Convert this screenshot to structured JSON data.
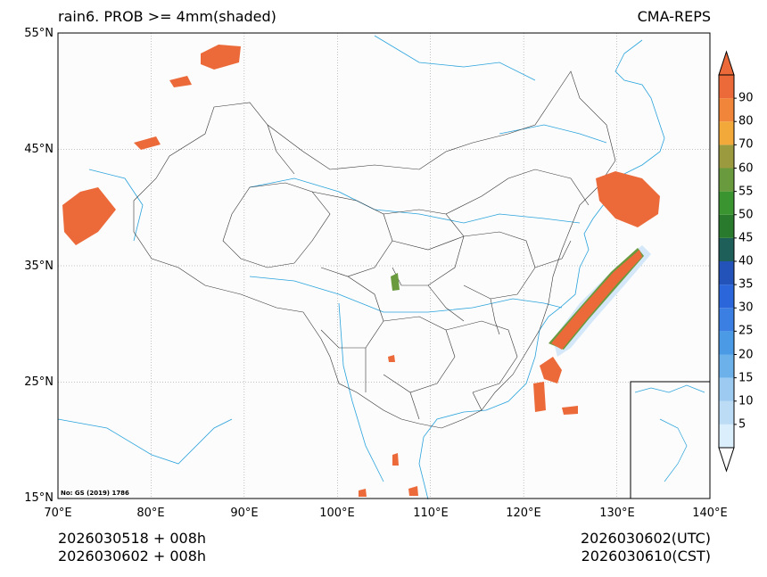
{
  "title_left": "rain6. PROB >= 4mm(shaded)",
  "title_right": "CMA-REPS",
  "map": {
    "lon_range": [
      70,
      140
    ],
    "lat_range": [
      15,
      55
    ],
    "lat_ticks": [
      {
        "value": 55,
        "label": "55°N"
      },
      {
        "value": 45,
        "label": "45°N"
      },
      {
        "value": 35,
        "label": "35°N"
      },
      {
        "value": 25,
        "label": "25°N"
      },
      {
        "value": 15,
        "label": "15°N"
      }
    ],
    "lon_ticks": [
      {
        "value": 70,
        "label": "70°E"
      },
      {
        "value": 80,
        "label": "80°E"
      },
      {
        "value": 90,
        "label": "90°E"
      },
      {
        "value": 100,
        "label": "100°E"
      },
      {
        "value": 110,
        "label": "110°E"
      },
      {
        "value": 120,
        "label": "120°E"
      },
      {
        "value": 130,
        "label": "130°E"
      },
      {
        "value": 140,
        "label": "140°E"
      }
    ],
    "map_note": "No: GS (2019) 1786"
  },
  "colorbar": {
    "levels": [
      "5",
      "10",
      "15",
      "20",
      "25",
      "30",
      "35",
      "40",
      "45",
      "50",
      "55",
      "60",
      "70",
      "80",
      "90"
    ],
    "colors": [
      "#dbeefb",
      "#bcdcf5",
      "#9ccaf0",
      "#6cb1ea",
      "#4a9ae6",
      "#3c7fe3",
      "#2b67db",
      "#2352b8",
      "#1f5f5a",
      "#2a7a2e",
      "#3a942f",
      "#6a9a3e",
      "#9c9a3e",
      "#f3a83a",
      "#f1853a",
      "#ec6a3a"
    ],
    "extend_top_color": "#ec6a3a",
    "extend_bottom_color": "#ffffff"
  },
  "footer": {
    "left_line1": "2026030518  +  008h",
    "left_line2": "2026030602  +  008h",
    "right_line1": "2026030602(UTC)",
    "right_line2": "2026030610(CST)"
  },
  "colors": {
    "prob_high": "#ec6a3a",
    "river": "#29a3dc",
    "border": "#333333",
    "grid": "#888888"
  }
}
